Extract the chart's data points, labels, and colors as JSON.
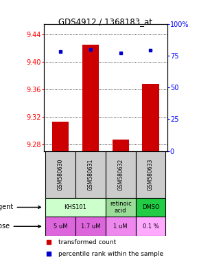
{
  "title": "GDS4912 / 1368183_at",
  "samples": [
    "GSM580630",
    "GSM580631",
    "GSM580632",
    "GSM580633"
  ],
  "red_values": [
    9.313,
    9.425,
    9.287,
    9.368
  ],
  "blue_values": [
    78,
    80,
    77,
    79
  ],
  "ylim_left": [
    9.27,
    9.455
  ],
  "ylim_right": [
    0,
    100
  ],
  "yticks_left": [
    9.28,
    9.32,
    9.36,
    9.4,
    9.44
  ],
  "yticks_right": [
    0,
    25,
    50,
    75,
    100
  ],
  "ytick_labels_right": [
    "0",
    "25",
    "50",
    "75",
    "100%"
  ],
  "agent_groups": [
    {
      "cols": [
        0,
        1
      ],
      "text": "KHS101",
      "color": "#ccffcc"
    },
    {
      "cols": [
        2
      ],
      "text": "retinoic\nacid",
      "color": "#99dd99"
    },
    {
      "cols": [
        3
      ],
      "text": "DMSO",
      "color": "#22cc44"
    }
  ],
  "dose_labels": [
    "5 uM",
    "1.7 uM",
    "1 uM",
    "0.1 %"
  ],
  "dose_colors": [
    "#dd66dd",
    "#dd66dd",
    "#ee88ee",
    "#ffaaff"
  ],
  "bar_color": "#cc0000",
  "dot_color": "#0000cc",
  "sample_bg": "#cccccc"
}
